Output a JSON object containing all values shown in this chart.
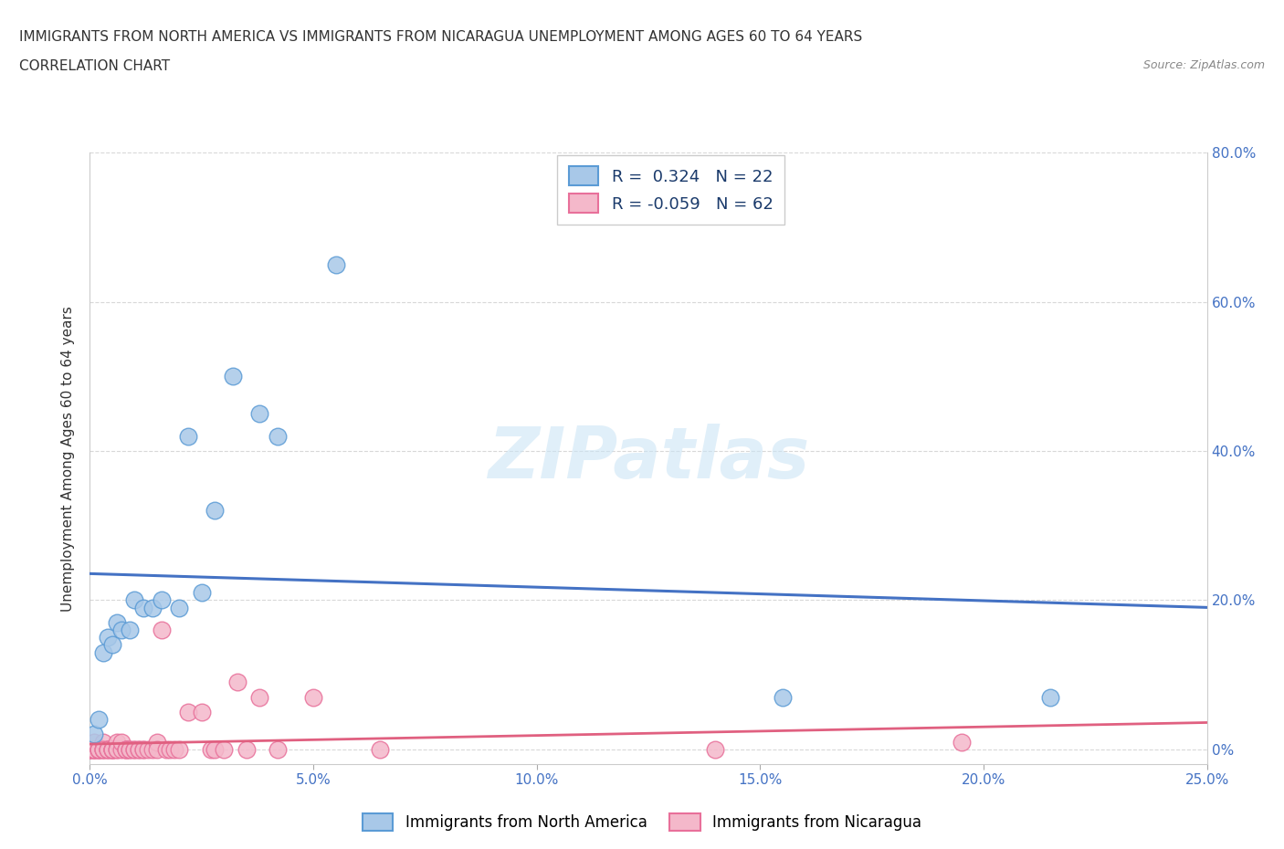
{
  "title_line1": "IMMIGRANTS FROM NORTH AMERICA VS IMMIGRANTS FROM NICARAGUA UNEMPLOYMENT AMONG AGES 60 TO 64 YEARS",
  "title_line2": "CORRELATION CHART",
  "source": "Source: ZipAtlas.com",
  "ylabel_label": "Unemployment Among Ages 60 to 64 years",
  "xmin": 0.0,
  "xmax": 0.25,
  "ymin": -0.02,
  "ymax": 0.8,
  "xticks": [
    0.0,
    0.05,
    0.1,
    0.15,
    0.2,
    0.25
  ],
  "yticks": [
    0.0,
    0.2,
    0.4,
    0.6,
    0.8
  ],
  "xtick_labels": [
    "0.0%",
    "5.0%",
    "10.0%",
    "15.0%",
    "20.0%",
    "25.0%"
  ],
  "ytick_labels_right": [
    "0%",
    "20.0%",
    "40.0%",
    "60.0%",
    "80.0%"
  ],
  "blue_color": "#a8c8e8",
  "blue_edge_color": "#5b9bd5",
  "pink_color": "#f4b8ca",
  "pink_edge_color": "#e8709a",
  "trend_blue_color": "#4472c4",
  "trend_pink_color": "#e06080",
  "legend_R1": "0.324",
  "legend_N1": "22",
  "legend_R2": "-0.059",
  "legend_N2": "62",
  "legend_label1": "Immigrants from North America",
  "legend_label2": "Immigrants from Nicaragua",
  "watermark": "ZIPatlas",
  "blue_x": [
    0.001,
    0.002,
    0.003,
    0.004,
    0.005,
    0.006,
    0.007,
    0.009,
    0.01,
    0.012,
    0.014,
    0.016,
    0.02,
    0.022,
    0.025,
    0.028,
    0.032,
    0.038,
    0.042,
    0.055,
    0.155,
    0.215
  ],
  "blue_y": [
    0.02,
    0.04,
    0.13,
    0.15,
    0.14,
    0.17,
    0.16,
    0.16,
    0.2,
    0.19,
    0.19,
    0.2,
    0.19,
    0.42,
    0.21,
    0.32,
    0.5,
    0.45,
    0.42,
    0.65,
    0.07,
    0.07
  ],
  "pink_x": [
    0.0,
    0.0,
    0.0,
    0.0,
    0.001,
    0.001,
    0.001,
    0.001,
    0.001,
    0.002,
    0.002,
    0.002,
    0.002,
    0.003,
    0.003,
    0.003,
    0.003,
    0.004,
    0.004,
    0.004,
    0.005,
    0.005,
    0.005,
    0.005,
    0.006,
    0.006,
    0.006,
    0.007,
    0.007,
    0.008,
    0.008,
    0.008,
    0.009,
    0.009,
    0.01,
    0.01,
    0.011,
    0.011,
    0.012,
    0.012,
    0.013,
    0.014,
    0.015,
    0.015,
    0.016,
    0.017,
    0.018,
    0.019,
    0.02,
    0.022,
    0.025,
    0.027,
    0.028,
    0.03,
    0.033,
    0.035,
    0.038,
    0.042,
    0.05,
    0.065,
    0.14,
    0.195
  ],
  "pink_y": [
    0.0,
    0.0,
    0.0,
    0.0,
    0.0,
    0.0,
    0.0,
    0.0,
    0.01,
    0.0,
    0.0,
    0.0,
    0.0,
    0.0,
    0.0,
    0.01,
    0.0,
    0.0,
    0.0,
    0.0,
    0.0,
    0.0,
    0.0,
    0.0,
    0.0,
    0.01,
    0.0,
    0.0,
    0.01,
    0.0,
    0.0,
    0.0,
    0.0,
    0.0,
    0.0,
    0.0,
    0.0,
    0.0,
    0.0,
    0.0,
    0.0,
    0.0,
    0.01,
    0.0,
    0.16,
    0.0,
    0.0,
    0.0,
    0.0,
    0.05,
    0.05,
    0.0,
    0.0,
    0.0,
    0.09,
    0.0,
    0.07,
    0.0,
    0.07,
    0.0,
    0.0,
    0.01
  ],
  "background_color": "#ffffff",
  "grid_color": "#d8d8d8",
  "title_fontsize": 11,
  "tick_fontsize": 11,
  "ylabel_fontsize": 11
}
